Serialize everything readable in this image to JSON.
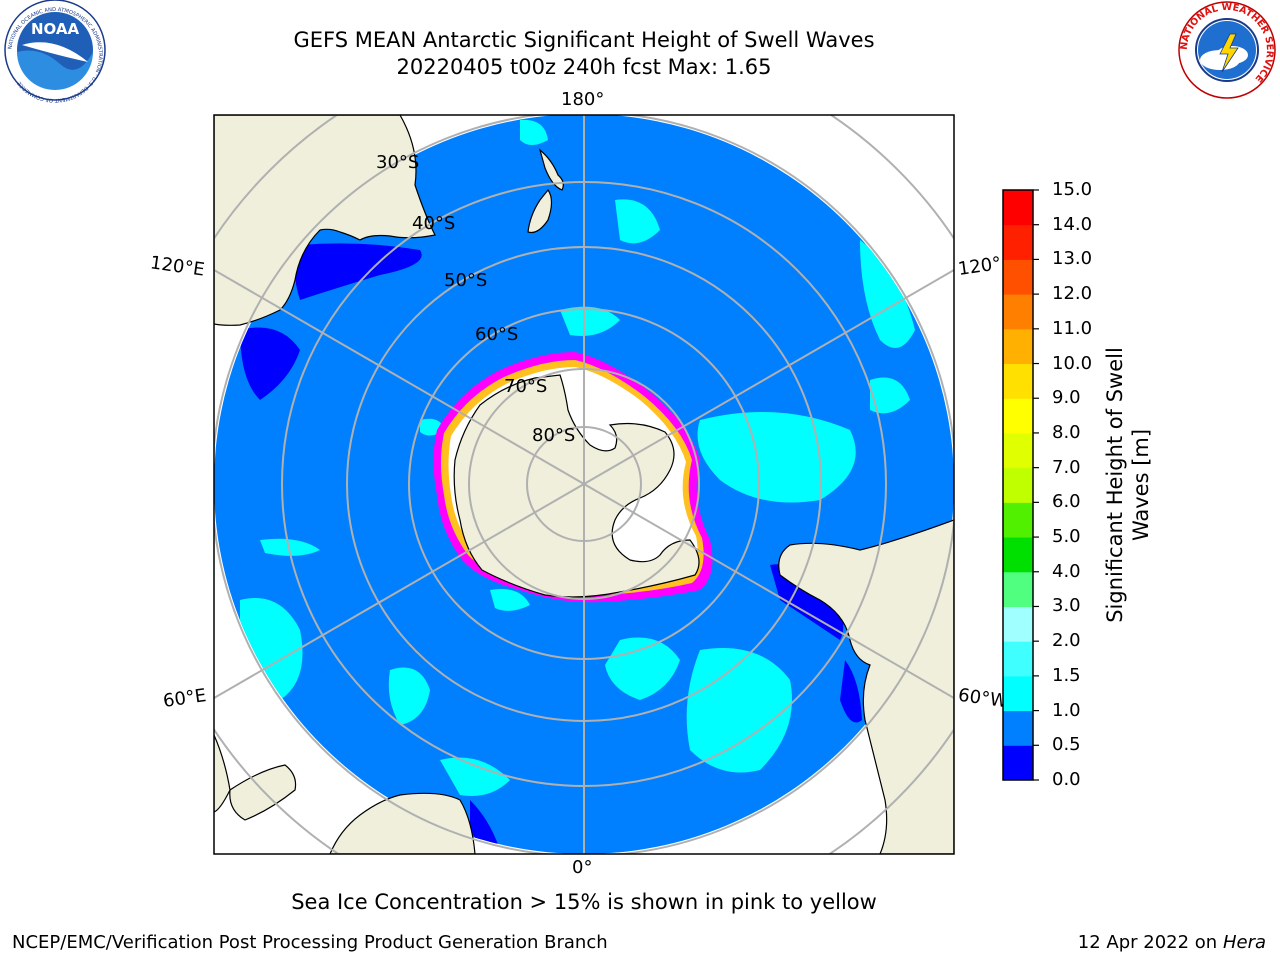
{
  "header": {
    "title_line1": "GEFS MEAN Antarctic Significant Height of Swell Waves",
    "title_line2": "20220405 t00z 240h fcst   Max: 1.65"
  },
  "map": {
    "projection": "south-polar-stereographic",
    "longitude_labels": {
      "top": "180°",
      "bottom": "0°",
      "left_upper": "120°E",
      "left_lower": "60°E",
      "right_upper": "120°",
      "right_lower": "60°W"
    },
    "latitude_labels": [
      "30°S",
      "40°S",
      "50°S",
      "60°S",
      "70°S",
      "80°S"
    ],
    "ocean_color": "#0080ff",
    "land_color": "#efefdc",
    "ice_edge_colors": [
      "#ff00ff",
      "#ffa0ff",
      "#ffc020",
      "#ffffff"
    ]
  },
  "colorbar": {
    "label_line1": "Significant Height of Swell",
    "label_line2": "Waves [m]",
    "ticks": [
      "0.0",
      "0.5",
      "1.0",
      "1.5",
      "2.0",
      "3.0",
      "4.0",
      "5.0",
      "6.0",
      "7.0",
      "8.0",
      "9.0",
      "10.0",
      "11.0",
      "12.0",
      "13.0",
      "14.0",
      "15.0"
    ],
    "colors": [
      "#0000ff",
      "#0080ff",
      "#00ffff",
      "#40ffff",
      "#a0ffff",
      "#50ff80",
      "#00e000",
      "#50f000",
      "#c0ff00",
      "#e0ff00",
      "#ffff00",
      "#ffe000",
      "#ffb000",
      "#ff8000",
      "#ff5000",
      "#ff2000",
      "#ff0000"
    ]
  },
  "caption": "Sea Ice Concentration > 15% is shown in pink to yellow",
  "footer": {
    "left": "NCEP/EMC/Verification Post Processing Product Generation Branch",
    "right_prefix": "12 Apr 2022 on ",
    "right_host": "Hera"
  },
  "logos": {
    "left": "noara-logo",
    "right": "national-weather-service-logo",
    "left_text": "NOAA",
    "left_ring_text": "NATIONAL OCEANIC AND ATMOSPHERIC ADMINISTRATION · U.S. DEPARTMENT OF COMMERCE",
    "right_ring_text": "NATIONAL WEATHER SERVICE"
  }
}
